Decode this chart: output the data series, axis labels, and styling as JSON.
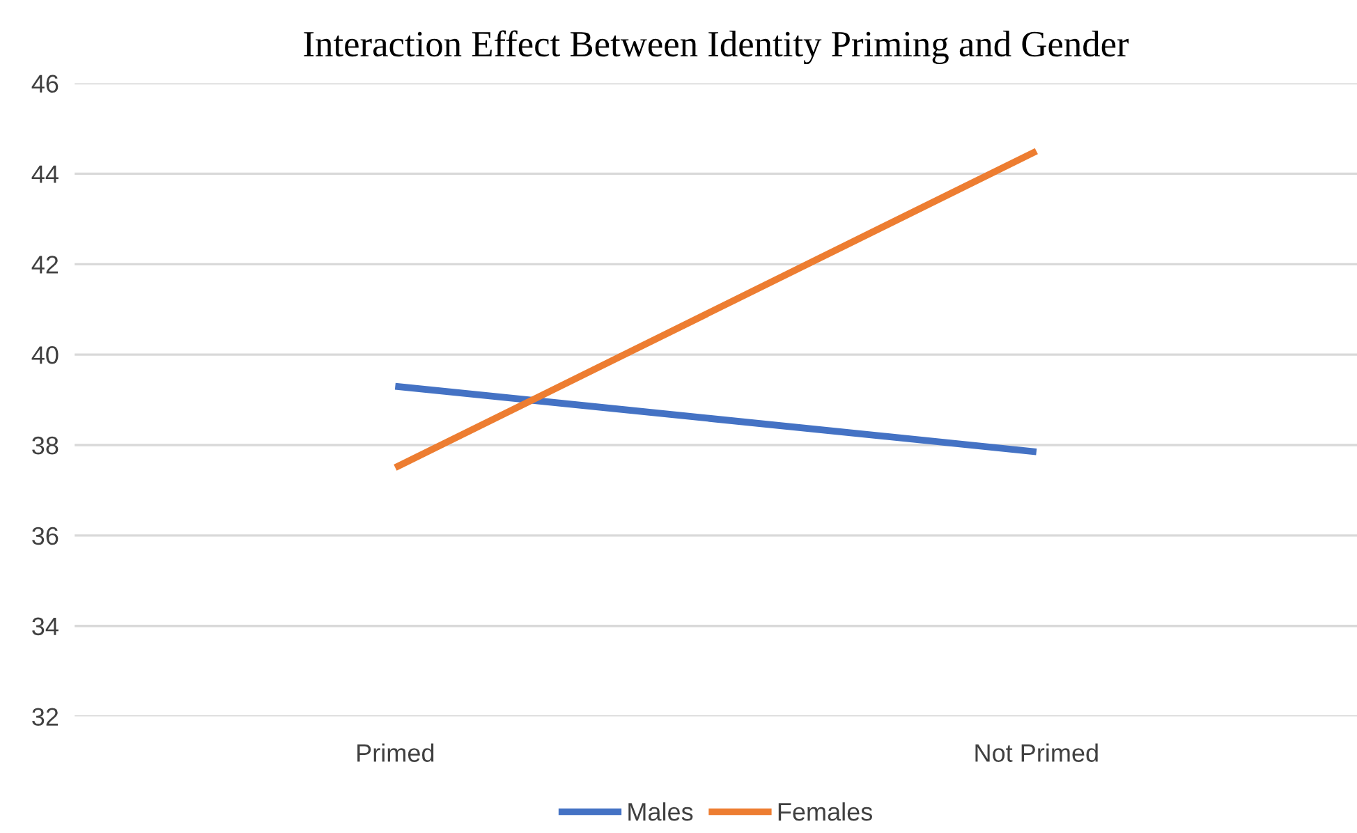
{
  "chart_data": {
    "type": "line",
    "title": "Interaction Effect Between Identity Priming and Gender",
    "categories": [
      "Primed",
      "Not Primed"
    ],
    "series": [
      {
        "name": "Males",
        "color": "#4472c4",
        "values": [
          39.3,
          37.85
        ]
      },
      {
        "name": "Females",
        "color": "#ed7d31",
        "values": [
          37.5,
          44.5
        ]
      }
    ],
    "ylim": [
      32,
      46
    ],
    "yticks": [
      32,
      34,
      36,
      38,
      40,
      42,
      44,
      46
    ],
    "grid": "y",
    "legend": "bottom",
    "line_style": "solid"
  }
}
